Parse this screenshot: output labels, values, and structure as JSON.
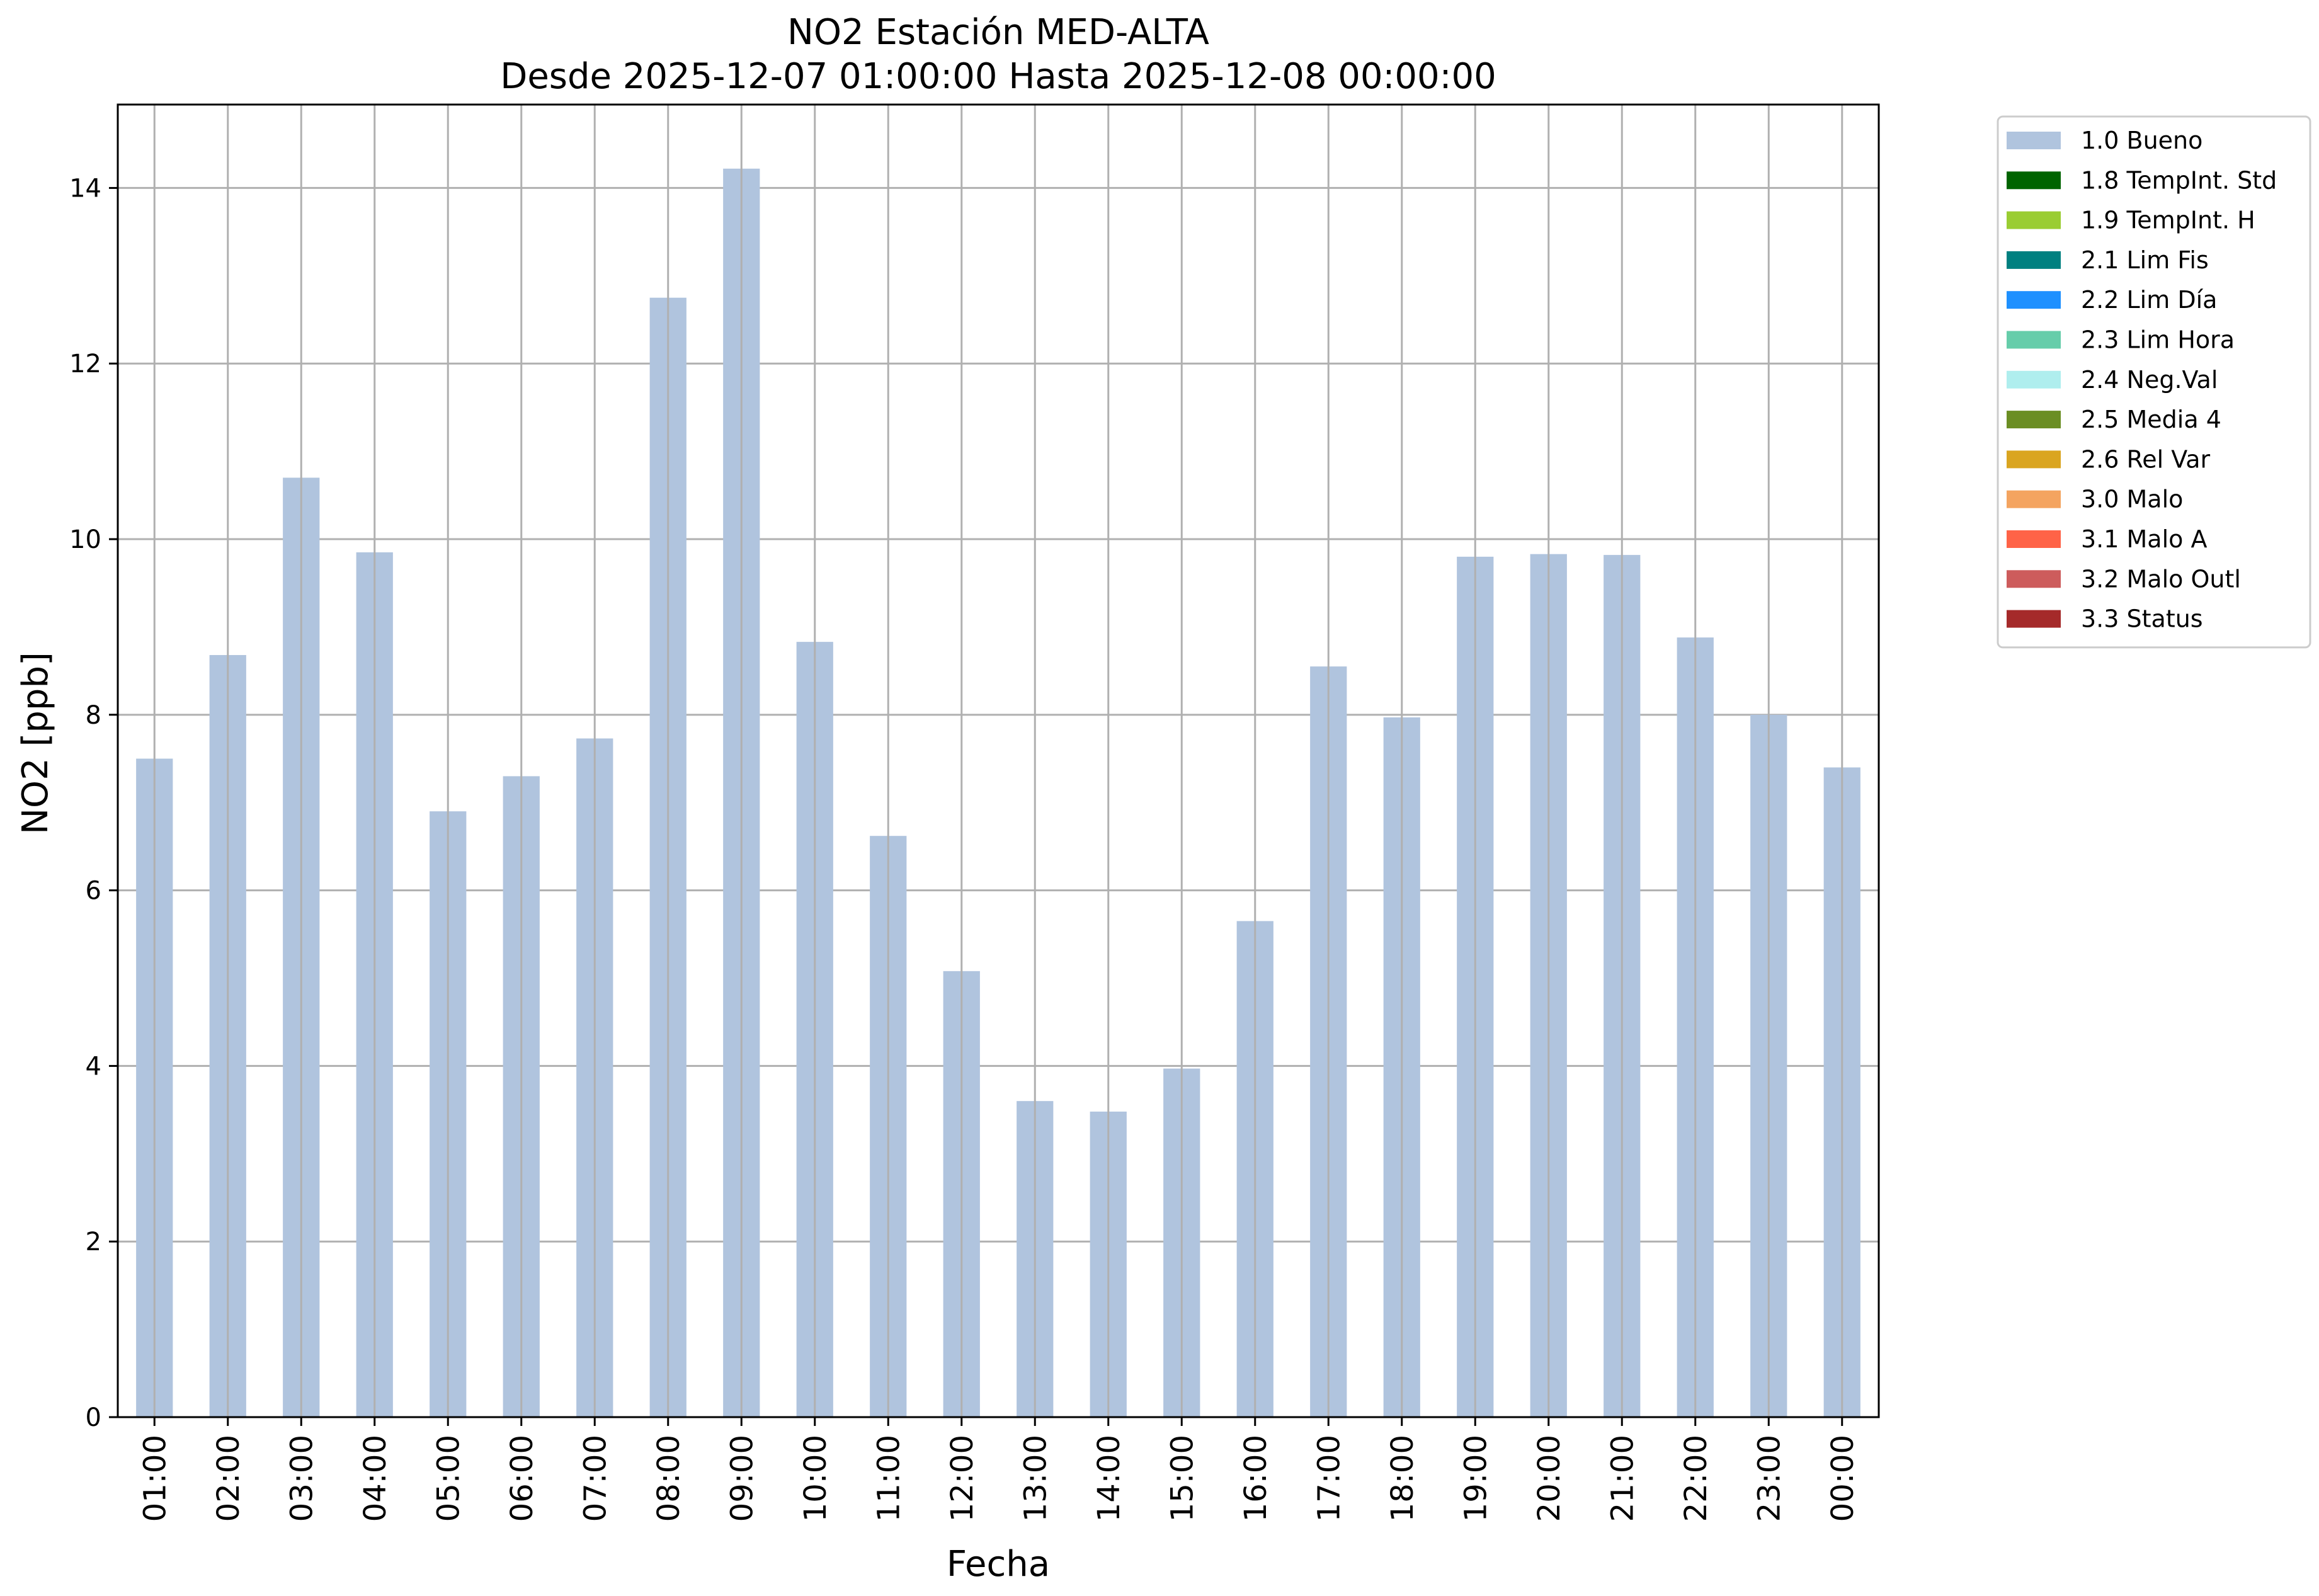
{
  "chart_data": {
    "type": "bar",
    "title": "NO2 Estación MED-ALTA",
    "subtitle": "Desde 2025-12-07 01:00:00 Hasta 2025-12-08 00:00:00",
    "xlabel": "Fecha",
    "ylabel": "NO2 [ppb]",
    "ylim": [
      0,
      14.95
    ],
    "yticks": [
      "0",
      "2",
      "4",
      "6",
      "8",
      "10",
      "12",
      "14"
    ],
    "grid": true,
    "legend_position": "outside-top-right",
    "categories": [
      "01:00",
      "02:00",
      "03:00",
      "04:00",
      "05:00",
      "06:00",
      "07:00",
      "08:00",
      "09:00",
      "10:00",
      "11:00",
      "12:00",
      "13:00",
      "14:00",
      "15:00",
      "16:00",
      "17:00",
      "18:00",
      "19:00",
      "20:00",
      "21:00",
      "22:00",
      "23:00",
      "00:00"
    ],
    "series": [
      {
        "name": "1.0 Bueno",
        "color": "#b0c4de",
        "values": [
          7.5,
          8.68,
          10.7,
          9.85,
          6.9,
          7.3,
          7.73,
          12.75,
          14.22,
          8.83,
          6.62,
          5.08,
          3.6,
          3.48,
          3.97,
          5.65,
          8.55,
          7.97,
          9.8,
          9.83,
          9.82,
          8.88,
          8.0,
          7.4
        ]
      }
    ],
    "legend": [
      {
        "label": "1.0 Bueno",
        "color": "#b0c4de"
      },
      {
        "label": "1.8 TempInt. Std",
        "color": "#006400"
      },
      {
        "label": "1.9 TempInt. H",
        "color": "#9acd32"
      },
      {
        "label": "2.1 Lim Fis",
        "color": "#008080"
      },
      {
        "label": "2.2 Lim Día",
        "color": "#1e90ff"
      },
      {
        "label": "2.3 Lim Hora",
        "color": "#66cdaa"
      },
      {
        "label": "2.4 Neg.Val",
        "color": "#afeeee"
      },
      {
        "label": "2.5 Media 4",
        "color": "#6b8e23"
      },
      {
        "label": "2.6 Rel Var",
        "color": "#daa520"
      },
      {
        "label": "3.0 Malo",
        "color": "#f4a460"
      },
      {
        "label": "3.1 Malo A",
        "color": "#ff6347"
      },
      {
        "label": "3.2 Malo Outl",
        "color": "#cd5c5c"
      },
      {
        "label": "3.3 Status",
        "color": "#a52a2a"
      }
    ]
  }
}
